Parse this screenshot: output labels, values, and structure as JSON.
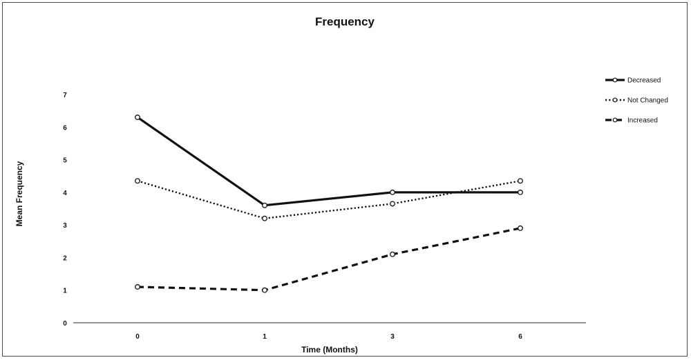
{
  "chart_data": {
    "type": "line",
    "title": "Frequency",
    "xlabel": "Time (Months)",
    "ylabel": "Mean Frequency",
    "categories": [
      "0",
      "1",
      "3",
      "6"
    ],
    "yticks": [
      "0",
      "1",
      "2",
      "3",
      "4",
      "5",
      "6",
      "7"
    ],
    "ylim": [
      0,
      7
    ],
    "grid": false,
    "legend_position": "right",
    "series": [
      {
        "name": "Decreased",
        "values": [
          6.3,
          3.6,
          4.0,
          4.0
        ],
        "line_style": "solid",
        "color": "#111111"
      },
      {
        "name": "Not Changed",
        "values": [
          4.35,
          3.2,
          3.65,
          4.35
        ],
        "line_style": "dotted",
        "color": "#111111"
      },
      {
        "name": "Increased",
        "values": [
          1.1,
          1.0,
          2.1,
          2.9
        ],
        "line_style": "dashed",
        "color": "#111111"
      }
    ]
  }
}
